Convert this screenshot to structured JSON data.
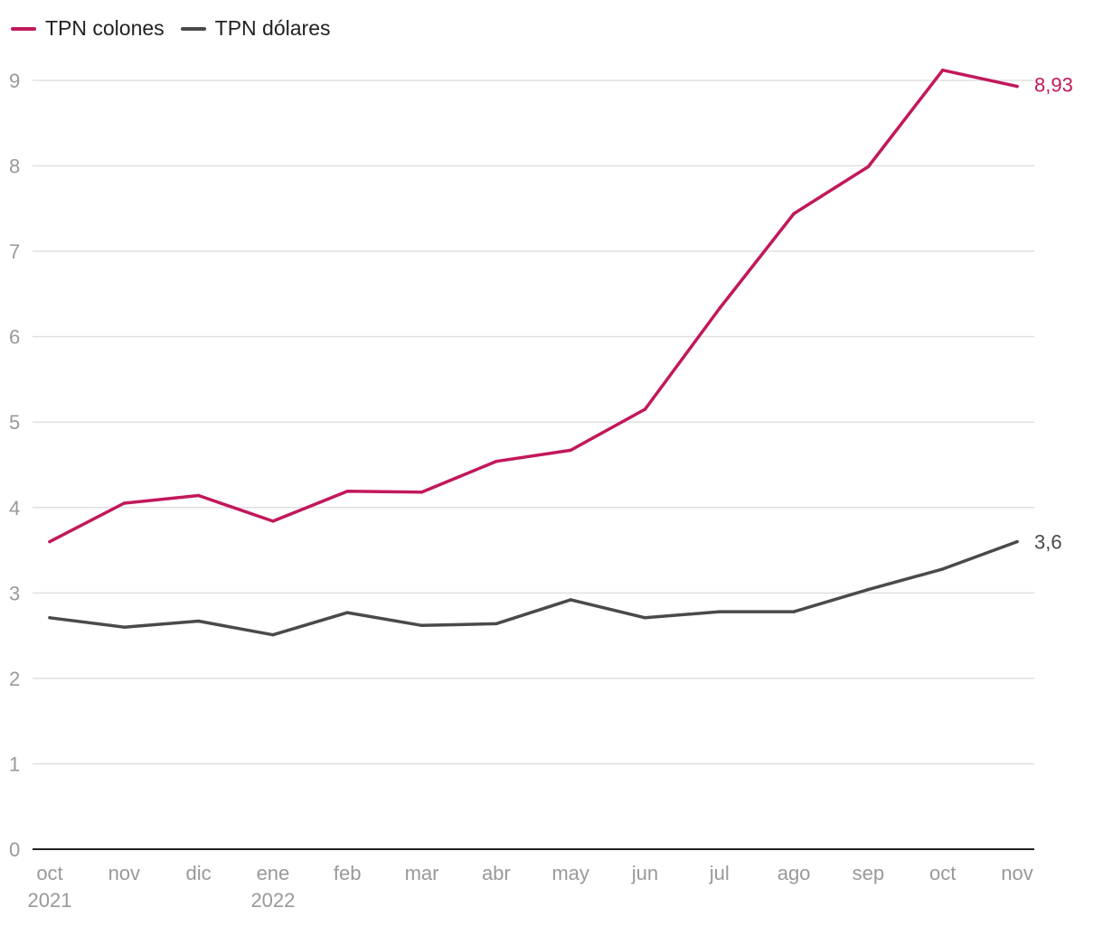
{
  "chart_data": {
    "type": "line",
    "title": "",
    "xlabel": "",
    "ylabel": "",
    "ylim": [
      0,
      9
    ],
    "yticks": [
      "0",
      "1",
      "2",
      "3",
      "4",
      "5",
      "6",
      "7",
      "8",
      "9"
    ],
    "grid": true,
    "legend_position": "top-left",
    "categories": [
      "oct",
      "nov",
      "dic",
      "ene",
      "feb",
      "mar",
      "abr",
      "may",
      "jun",
      "jul",
      "ago",
      "sep",
      "oct",
      "nov"
    ],
    "year_labels": [
      "2021",
      "",
      "",
      "2022",
      "",
      "",
      "",
      "",
      "",
      "",
      "",
      "",
      "",
      ""
    ],
    "series": [
      {
        "name": "TPN colones",
        "color": "#c2185b",
        "values": [
          3.6,
          4.05,
          4.14,
          3.84,
          4.19,
          4.18,
          4.54,
          4.67,
          5.15,
          6.33,
          7.44,
          7.99,
          9.12,
          8.93
        ],
        "end_label": "8,93"
      },
      {
        "name": "TPN dólares",
        "color": "#4a4a4a",
        "values": [
          2.71,
          2.6,
          2.67,
          2.51,
          2.77,
          2.62,
          2.64,
          2.92,
          2.71,
          2.78,
          2.78,
          3.04,
          3.28,
          3.6
        ],
        "end_label": "3,6"
      }
    ]
  }
}
